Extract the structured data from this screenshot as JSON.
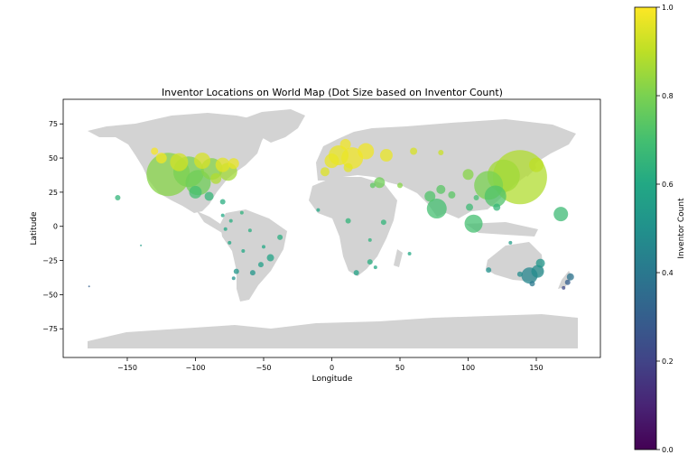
{
  "chart_data": {
    "type": "scatter",
    "title": "Inventor Locations on World Map (Dot Size based on Inventor Count)",
    "xlabel": "Longitude",
    "ylabel": "Latitude",
    "xlim": [
      -197,
      197
    ],
    "ylim": [
      -96,
      93
    ],
    "xticks": [
      -150,
      -100,
      -50,
      0,
      50,
      100,
      150
    ],
    "xtick_labels": [
      "−150",
      "−100",
      "−50",
      "0",
      "50",
      "100",
      "150"
    ],
    "yticks": [
      75,
      50,
      25,
      0,
      -25,
      -50,
      -75
    ],
    "ytick_labels": [
      "75",
      "50",
      "25",
      "0",
      "−25",
      "−50",
      "−75"
    ],
    "grid": false,
    "basemap_color": "#d3d3d3",
    "colorbar": {
      "label": "Inventor Count",
      "colormap": "viridis",
      "range": [
        0.0,
        1.0
      ],
      "ticks": [
        0.0,
        0.2,
        0.4,
        0.6,
        0.8,
        1.0
      ],
      "tick_labels": [
        "0.0",
        "0.2",
        "0.4",
        "0.6",
        "0.8",
        "1.0"
      ]
    },
    "points": [
      {
        "lon": -120,
        "lat": 38,
        "value": 0.82,
        "size": 24
      },
      {
        "lon": -105,
        "lat": 40,
        "value": 0.8,
        "size": 17
      },
      {
        "lon": -98,
        "lat": 32,
        "value": 0.78,
        "size": 14
      },
      {
        "lon": -88,
        "lat": 42,
        "value": 0.82,
        "size": 12
      },
      {
        "lon": -76,
        "lat": 40,
        "value": 0.86,
        "size": 10
      },
      {
        "lon": -112,
        "lat": 47,
        "value": 0.93,
        "size": 10
      },
      {
        "lon": -95,
        "lat": 48,
        "value": 0.94,
        "size": 9
      },
      {
        "lon": -80,
        "lat": 45,
        "value": 0.96,
        "size": 8
      },
      {
        "lon": -125,
        "lat": 50,
        "value": 0.98,
        "size": 6
      },
      {
        "lon": -72,
        "lat": 46,
        "value": 0.97,
        "size": 6
      },
      {
        "lon": -130,
        "lat": 55,
        "value": 0.99,
        "size": 4
      },
      {
        "lon": -85,
        "lat": 35,
        "value": 0.88,
        "size": 6
      },
      {
        "lon": -100,
        "lat": 25,
        "value": 0.7,
        "size": 7
      },
      {
        "lon": -90,
        "lat": 22,
        "value": 0.66,
        "size": 5
      },
      {
        "lon": -80,
        "lat": 18,
        "value": 0.62,
        "size": 3
      },
      {
        "lon": -157,
        "lat": 21,
        "value": 0.65,
        "size": 3
      },
      {
        "lon": -80,
        "lat": 8,
        "value": 0.6,
        "size": 2
      },
      {
        "lon": -74,
        "lat": 4,
        "value": 0.62,
        "size": 2
      },
      {
        "lon": -66,
        "lat": 10,
        "value": 0.64,
        "size": 2
      },
      {
        "lon": -78,
        "lat": -2,
        "value": 0.6,
        "size": 2
      },
      {
        "lon": -60,
        "lat": -3,
        "value": 0.62,
        "size": 2
      },
      {
        "lon": -50,
        "lat": -15,
        "value": 0.6,
        "size": 2
      },
      {
        "lon": -38,
        "lat": -8,
        "value": 0.62,
        "size": 3
      },
      {
        "lon": -45,
        "lat": -23,
        "value": 0.58,
        "size": 4
      },
      {
        "lon": -52,
        "lat": -28,
        "value": 0.56,
        "size": 3
      },
      {
        "lon": -58,
        "lat": -34,
        "value": 0.52,
        "size": 3
      },
      {
        "lon": -70,
        "lat": -33,
        "value": 0.52,
        "size": 3
      },
      {
        "lon": -72,
        "lat": -38,
        "value": 0.5,
        "size": 2
      },
      {
        "lon": -75,
        "lat": -12,
        "value": 0.6,
        "size": 2
      },
      {
        "lon": -65,
        "lat": -18,
        "value": 0.6,
        "size": 2
      },
      {
        "lon": -140,
        "lat": -14,
        "value": 0.55,
        "size": 1
      },
      {
        "lon": -178,
        "lat": -44,
        "value": 0.3,
        "size": 1
      },
      {
        "lon": 5,
        "lat": 52,
        "value": 0.97,
        "size": 11
      },
      {
        "lon": 15,
        "lat": 50,
        "value": 0.98,
        "size": 12
      },
      {
        "lon": 25,
        "lat": 55,
        "value": 0.98,
        "size": 9
      },
      {
        "lon": 0,
        "lat": 48,
        "value": 0.97,
        "size": 8
      },
      {
        "lon": 40,
        "lat": 52,
        "value": 0.97,
        "size": 7
      },
      {
        "lon": 10,
        "lat": 60,
        "value": 0.98,
        "size": 6
      },
      {
        "lon": -5,
        "lat": 40,
        "value": 0.95,
        "size": 5
      },
      {
        "lon": 12,
        "lat": 43,
        "value": 0.96,
        "size": 5
      },
      {
        "lon": 60,
        "lat": 55,
        "value": 0.94,
        "size": 4
      },
      {
        "lon": 80,
        "lat": 54,
        "value": 0.92,
        "size": 3
      },
      {
        "lon": 35,
        "lat": 32,
        "value": 0.78,
        "size": 6
      },
      {
        "lon": 50,
        "lat": 30,
        "value": 0.82,
        "size": 3
      },
      {
        "lon": 30,
        "lat": 30,
        "value": 0.75,
        "size": 3
      },
      {
        "lon": 72,
        "lat": 22,
        "value": 0.72,
        "size": 6
      },
      {
        "lon": 77,
        "lat": 13,
        "value": 0.7,
        "size": 11
      },
      {
        "lon": 80,
        "lat": 27,
        "value": 0.74,
        "size": 5
      },
      {
        "lon": 88,
        "lat": 23,
        "value": 0.74,
        "size": 4
      },
      {
        "lon": 104,
        "lat": 2,
        "value": 0.7,
        "size": 10
      },
      {
        "lon": 101,
        "lat": 14,
        "value": 0.68,
        "size": 4
      },
      {
        "lon": 106,
        "lat": 21,
        "value": 0.7,
        "size": 3
      },
      {
        "lon": 121,
        "lat": 14,
        "value": 0.66,
        "size": 4
      },
      {
        "lon": 115,
        "lat": 30,
        "value": 0.8,
        "size": 16
      },
      {
        "lon": 120,
        "lat": 22,
        "value": 0.72,
        "size": 12
      },
      {
        "lon": 126,
        "lat": 37,
        "value": 0.86,
        "size": 18
      },
      {
        "lon": 138,
        "lat": 36,
        "value": 0.88,
        "size": 30
      },
      {
        "lon": 150,
        "lat": 45,
        "value": 0.9,
        "size": 8
      },
      {
        "lon": 100,
        "lat": 38,
        "value": 0.82,
        "size": 6
      },
      {
        "lon": 168,
        "lat": 9,
        "value": 0.68,
        "size": 8
      },
      {
        "lon": 12,
        "lat": 4,
        "value": 0.65,
        "size": 3
      },
      {
        "lon": 38,
        "lat": 3,
        "value": 0.65,
        "size": 3
      },
      {
        "lon": 28,
        "lat": -10,
        "value": 0.64,
        "size": 2
      },
      {
        "lon": 28,
        "lat": -26,
        "value": 0.62,
        "size": 3
      },
      {
        "lon": 32,
        "lat": -30,
        "value": 0.6,
        "size": 2
      },
      {
        "lon": 18,
        "lat": -34,
        "value": 0.58,
        "size": 3
      },
      {
        "lon": 57,
        "lat": -20,
        "value": 0.6,
        "size": 2
      },
      {
        "lon": -10,
        "lat": 12,
        "value": 0.6,
        "size": 2
      },
      {
        "lon": 145,
        "lat": -36,
        "value": 0.45,
        "size": 9
      },
      {
        "lon": 151,
        "lat": -33,
        "value": 0.48,
        "size": 7
      },
      {
        "lon": 153,
        "lat": -27,
        "value": 0.52,
        "size": 5
      },
      {
        "lon": 138,
        "lat": -35,
        "value": 0.48,
        "size": 3
      },
      {
        "lon": 115,
        "lat": -32,
        "value": 0.5,
        "size": 3
      },
      {
        "lon": 147,
        "lat": -42,
        "value": 0.4,
        "size": 3
      },
      {
        "lon": 131,
        "lat": -12,
        "value": 0.55,
        "size": 2
      },
      {
        "lon": 175,
        "lat": -37,
        "value": 0.38,
        "size": 4
      },
      {
        "lon": 173,
        "lat": -41,
        "value": 0.3,
        "size": 3
      },
      {
        "lon": 170,
        "lat": -45,
        "value": 0.22,
        "size": 2
      }
    ]
  }
}
